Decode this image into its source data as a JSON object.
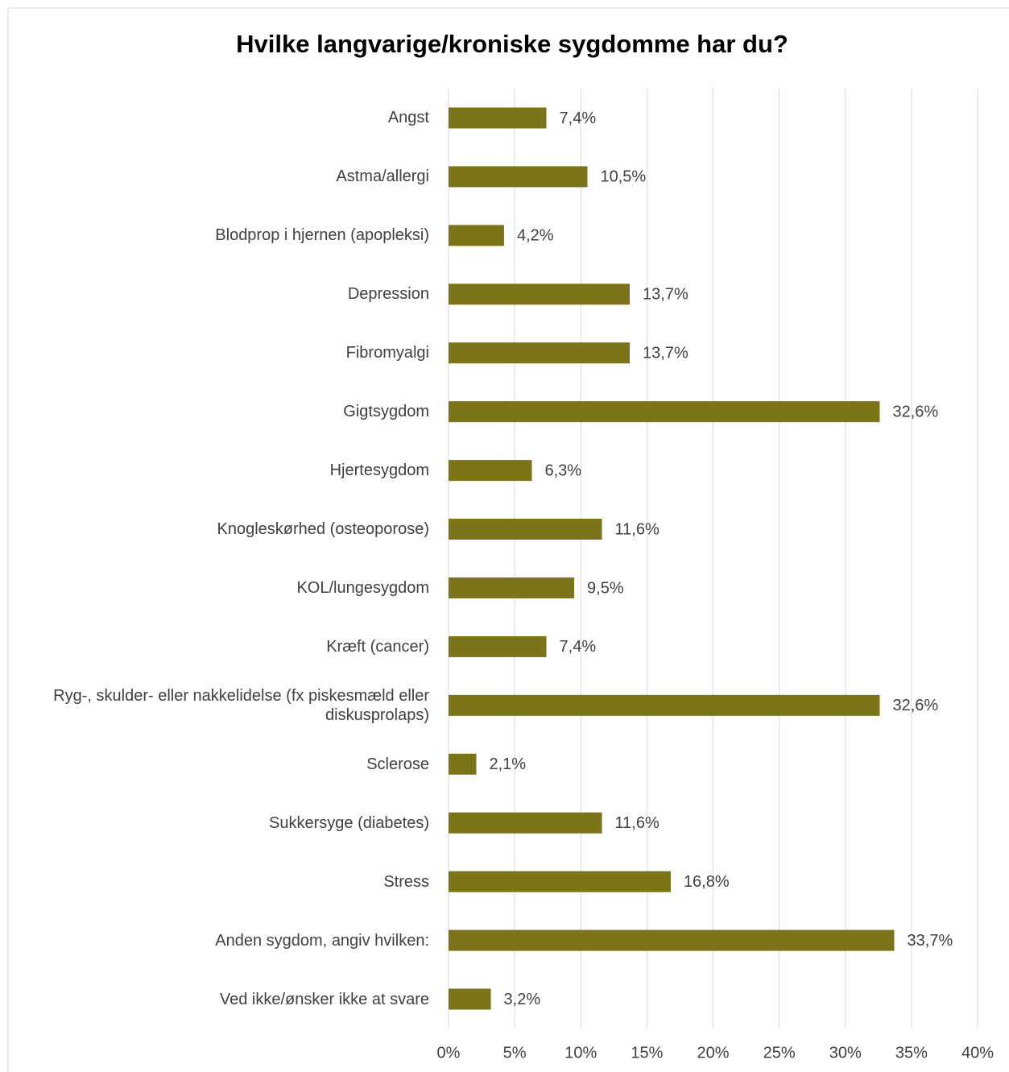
{
  "chart_data": {
    "type": "bar",
    "orientation": "horizontal",
    "title": "Hvilke langvarige/kroniske sygdomme har du?",
    "categories": [
      "Angst",
      "Astma/allergi",
      "Blodprop i hjernen (apopleksi)",
      "Depression",
      "Fibromyalgi",
      "Gigtsygdom",
      "Hjertesygdom",
      "Knogleskørhed (osteoporose)",
      "KOL/lungesygdom",
      "Kræft (cancer)",
      "Ryg-, skulder- eller nakkelidelse (fx piskesmæld eller diskusprolaps)",
      "Sclerose",
      "Sukkersyge (diabetes)",
      "Stress",
      "Anden sygdom, angiv hvilken:",
      "Ved ikke/ønsker ikke at svare"
    ],
    "values": [
      7.4,
      10.5,
      4.2,
      13.7,
      13.7,
      32.6,
      6.3,
      11.6,
      9.5,
      7.4,
      32.6,
      2.1,
      11.6,
      16.8,
      33.7,
      3.2
    ],
    "value_labels": [
      "7,4%",
      "10,5%",
      "4,2%",
      "13,7%",
      "13,7%",
      "32,6%",
      "6,3%",
      "11,6%",
      "9,5%",
      "7,4%",
      "32,6%",
      "2,1%",
      "11,6%",
      "16,8%",
      "33,7%",
      "3,2%"
    ],
    "color": "#7b7418",
    "xlim": [
      0,
      40
    ],
    "xticks": [
      {
        "value": 0,
        "label": "0%"
      },
      {
        "value": 5,
        "label": "5%"
      },
      {
        "value": 10,
        "label": "10%"
      },
      {
        "value": 15,
        "label": "15%"
      },
      {
        "value": 20,
        "label": "20%"
      },
      {
        "value": 25,
        "label": "25%"
      },
      {
        "value": 30,
        "label": "30%"
      },
      {
        "value": 35,
        "label": "35%"
      },
      {
        "value": 40,
        "label": "40%"
      }
    ],
    "grid": true
  }
}
